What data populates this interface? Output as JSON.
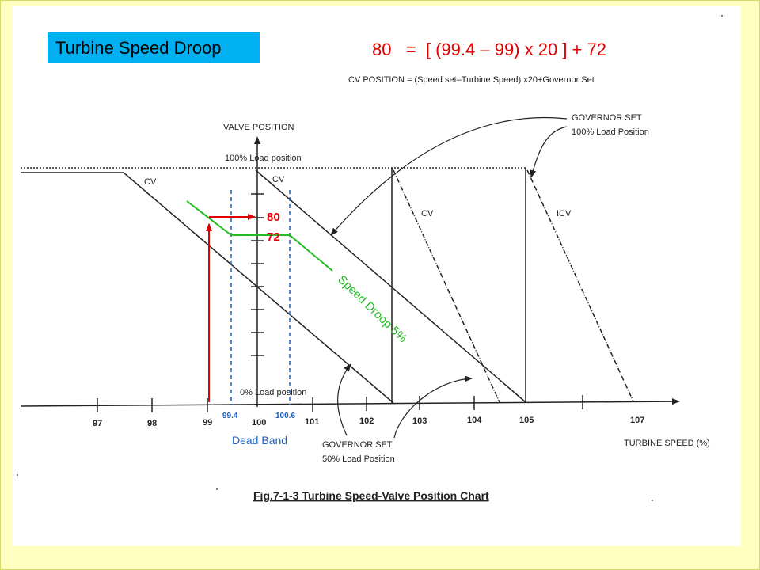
{
  "slide_title": "Turbine Speed Droop",
  "formula": "80   =  [ (99.4 – 99) x 20 ] + 72",
  "cv_equation": "CV POSITION = (Speed set–Turbine Speed) x20+Governor Set",
  "y_axis_title": "VALVE POSITION",
  "load_100_label": "100%  Load position",
  "load_0_label": "0%  Load position",
  "cv_left_label": "CV",
  "cv_right_label": "CV",
  "icv_left_label": "ICV",
  "icv_right_label": "ICV",
  "gov_set_100_line1": "GOVERNOR SET",
  "gov_set_100_line2": "100% Load Position",
  "gov_set_50_line1": "GOVERNOR SET",
  "gov_set_50_line2": "50% Load Position",
  "x_axis_title": "TURBINE SPEED (%)",
  "x_ticks": [
    "97",
    "98",
    "99",
    "100",
    "101",
    "102",
    "103",
    "104",
    "105",
    "107"
  ],
  "deadband_low": "99.4",
  "deadband_high": "100.6",
  "deadband_label": "Dead Band",
  "value_80": "80",
  "value_72": "72",
  "droop_label": "Speed Droop 5%",
  "figure_caption": "Fig.7-1-3 Turbine Speed-Valve Position Chart",
  "colors": {
    "title_bg": "#00b0f0",
    "formula": "#e00000",
    "red_marker": "#e00000",
    "deadband": "#1f5fbf",
    "droop_line": "#22bb22",
    "background": "#ffffc0"
  }
}
